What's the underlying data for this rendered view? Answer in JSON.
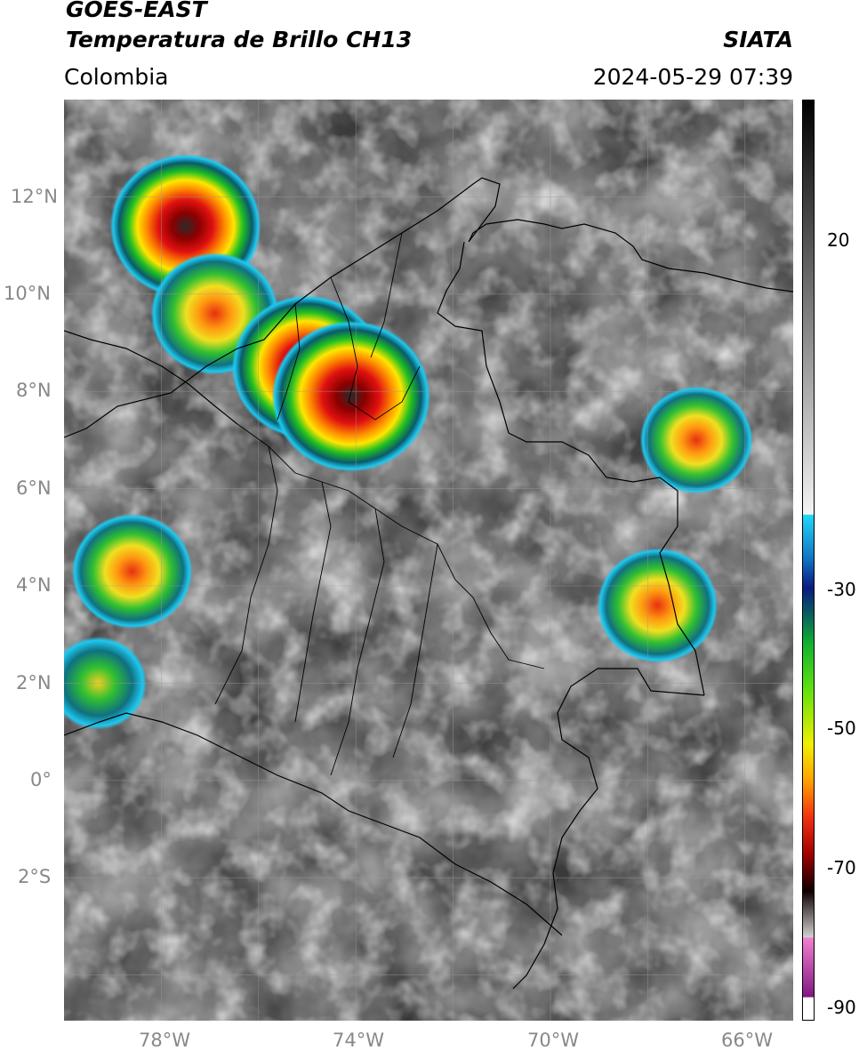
{
  "header": {
    "satellite": "GOES-EAST",
    "product": "Temperatura de Brillo CH13",
    "region": "Colombia",
    "org": "SIATA",
    "timestamp": "2024-05-29 07:39"
  },
  "map": {
    "lon_range": [
      -80,
      -65
    ],
    "lat_range": [
      -5,
      14
    ],
    "lon_ticks": [
      "78°W",
      "74°W",
      "70°W",
      "66°W"
    ],
    "lat_ticks": [
      "12°N",
      "10°N",
      "8°N",
      "6°N",
      "4°N",
      "2°N",
      "0°",
      "2°S"
    ],
    "storm_cells": [
      {
        "lon": -77.5,
        "lat": 11.4,
        "min_temp": -80
      },
      {
        "lon": -76.9,
        "lat": 9.6,
        "min_temp": -65
      },
      {
        "lon": -75.0,
        "lat": 8.5,
        "min_temp": -80
      },
      {
        "lon": -74.1,
        "lat": 7.9,
        "min_temp": -85
      },
      {
        "lon": -78.6,
        "lat": 4.3,
        "min_temp": -60
      },
      {
        "lon": -67.8,
        "lat": 3.6,
        "min_temp": -60
      },
      {
        "lon": -79.3,
        "lat": 2.0,
        "min_temp": -45
      },
      {
        "lon": -67.0,
        "lat": 7.0,
        "min_temp": -55
      }
    ]
  },
  "colorbar": {
    "ticks": [
      "20",
      "-30",
      "-50",
      "-70",
      "-90"
    ]
  }
}
